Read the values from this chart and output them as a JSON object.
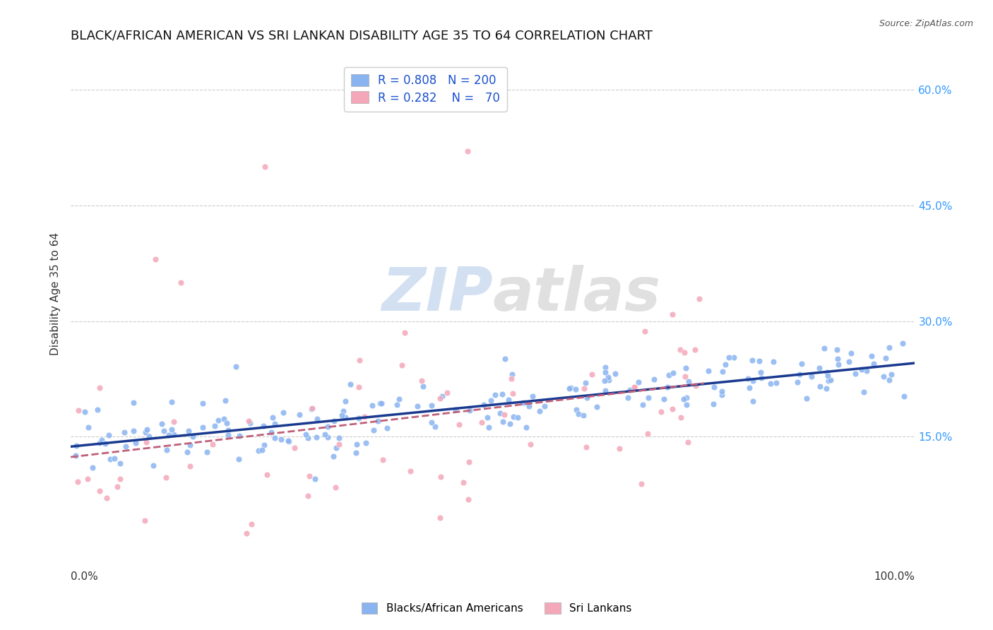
{
  "title": "BLACK/AFRICAN AMERICAN VS SRI LANKAN DISABILITY AGE 35 TO 64 CORRELATION CHART",
  "source": "Source: ZipAtlas.com",
  "ylabel": "Disability Age 35 to 64",
  "yticks": [
    "15.0%",
    "30.0%",
    "45.0%",
    "60.0%"
  ],
  "ytick_vals": [
    0.15,
    0.3,
    0.45,
    0.6
  ],
  "xlim": [
    0.0,
    1.0
  ],
  "ylim": [
    0.02,
    0.65
  ],
  "blue_R": 0.808,
  "blue_N": 200,
  "pink_R": 0.282,
  "pink_N": 70,
  "blue_color": "#8ab4f0",
  "pink_color": "#f4a7b9",
  "blue_line_color": "#1a3a8f",
  "pink_line_color": "#c0607a",
  "watermark_zip": "ZIP",
  "watermark_atlas": "atlas",
  "legend_label_blue": "Blacks/African Americans",
  "legend_label_pink": "Sri Lankans",
  "title_fontsize": 13,
  "axis_label_fontsize": 11,
  "tick_label_fontsize": 11,
  "seed": 42
}
